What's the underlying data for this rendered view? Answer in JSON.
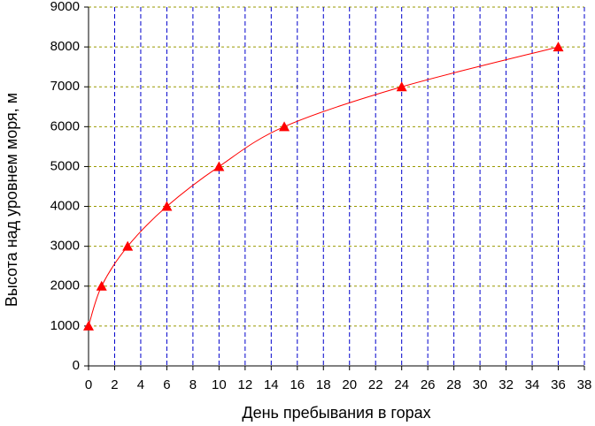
{
  "chart_data": {
    "type": "line",
    "x_label": "День пребывания в горах",
    "y_label": "Высота над уровнем моря, м",
    "x": [
      0,
      1,
      3,
      6,
      10,
      15,
      24,
      36
    ],
    "values": [
      1000,
      2000,
      3000,
      4000,
      5000,
      6000,
      7000,
      8000
    ],
    "color": "#ff0000",
    "marker": "triangle",
    "xlim": [
      0,
      38
    ],
    "xticks": [
      0,
      2,
      4,
      6,
      8,
      10,
      12,
      14,
      16,
      18,
      20,
      22,
      24,
      26,
      28,
      30,
      32,
      34,
      36,
      38
    ],
    "ylim": [
      0,
      9000
    ],
    "yticks": [
      0,
      1000,
      2000,
      3000,
      4000,
      5000,
      6000,
      7000,
      8000,
      9000
    ],
    "grid": true,
    "x_grid_color": "#0000cc",
    "y_grid_color": "#999900"
  }
}
